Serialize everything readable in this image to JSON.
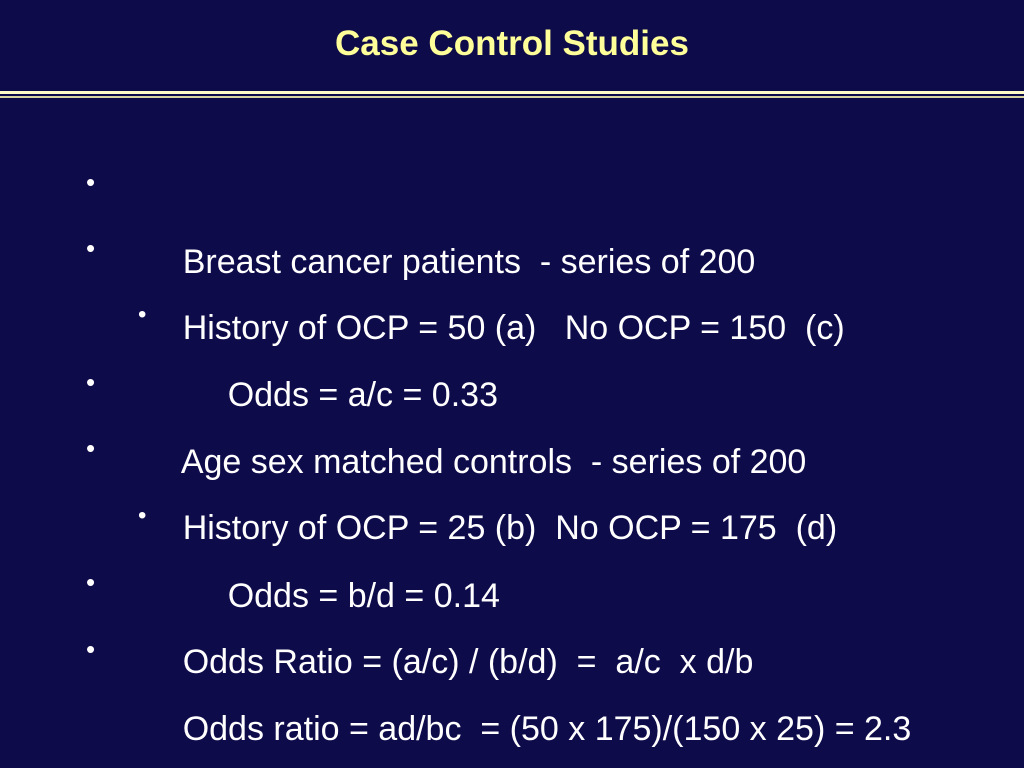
{
  "slide": {
    "title": "Case Control Studies",
    "bullet_glyph": "•",
    "bullets": [
      {
        "level": 1,
        "text": "Breast cancer patients  - series of 200"
      },
      {
        "level": 1,
        "text": "History of OCP = 50 (a)   No OCP = 150  (c)"
      },
      {
        "level": 2,
        "text": "Odds = a/c = 0.33"
      },
      {
        "level": 1,
        "text": "Age sex matched controls  - series of 200"
      },
      {
        "level": 1,
        "text": "History of OCP = 25 (b)  No OCP = 175  (d)"
      },
      {
        "level": 2,
        "text": "Odds = b/d = 0.14"
      },
      {
        "level": 1,
        "text": "Odds Ratio = (a/c) / (b/d)  =  a/c  x d/b"
      },
      {
        "level": 1,
        "text": "Odds ratio = ad/bc  = (50 x 175)/(150 x 25) = 2.3"
      }
    ]
  },
  "colors": {
    "background": "#0e0b4a",
    "title": "#ffff99",
    "body_text": "#ffffff",
    "rule": "#fffcc6"
  }
}
